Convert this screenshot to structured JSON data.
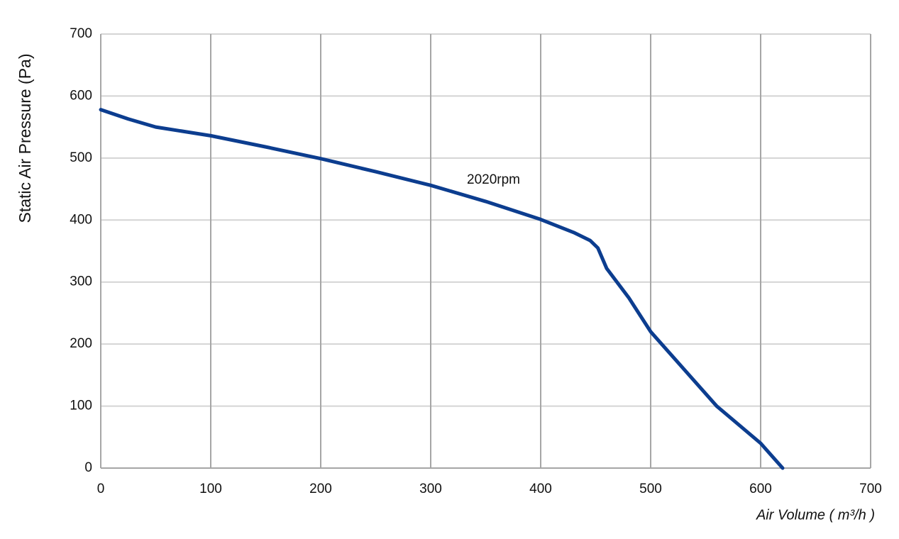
{
  "chart_data": {
    "type": "line",
    "x_label": "Air Volume ( m³/h )",
    "y_label": "Static Air Pressure  (Pa)",
    "annotation": "2020rpm",
    "xlim": [
      0,
      700
    ],
    "xticks": [
      0,
      100,
      200,
      300,
      400,
      500,
      600,
      700
    ],
    "ylim": [
      0,
      700
    ],
    "yticks": [
      0,
      100,
      200,
      300,
      400,
      500,
      600,
      700
    ],
    "grid": true,
    "series": [
      {
        "name": "2020rpm",
        "color": "#0c3d8f",
        "x": [
          0,
          25,
          50,
          100,
          150,
          200,
          250,
          300,
          350,
          400,
          430,
          445,
          452,
          460,
          480,
          500,
          530,
          560,
          600,
          620
        ],
        "values": [
          578,
          563,
          550,
          536,
          518,
          499,
          478,
          456,
          430,
          401,
          380,
          367,
          355,
          322,
          275,
          220,
          160,
          100,
          40,
          0
        ]
      }
    ]
  }
}
